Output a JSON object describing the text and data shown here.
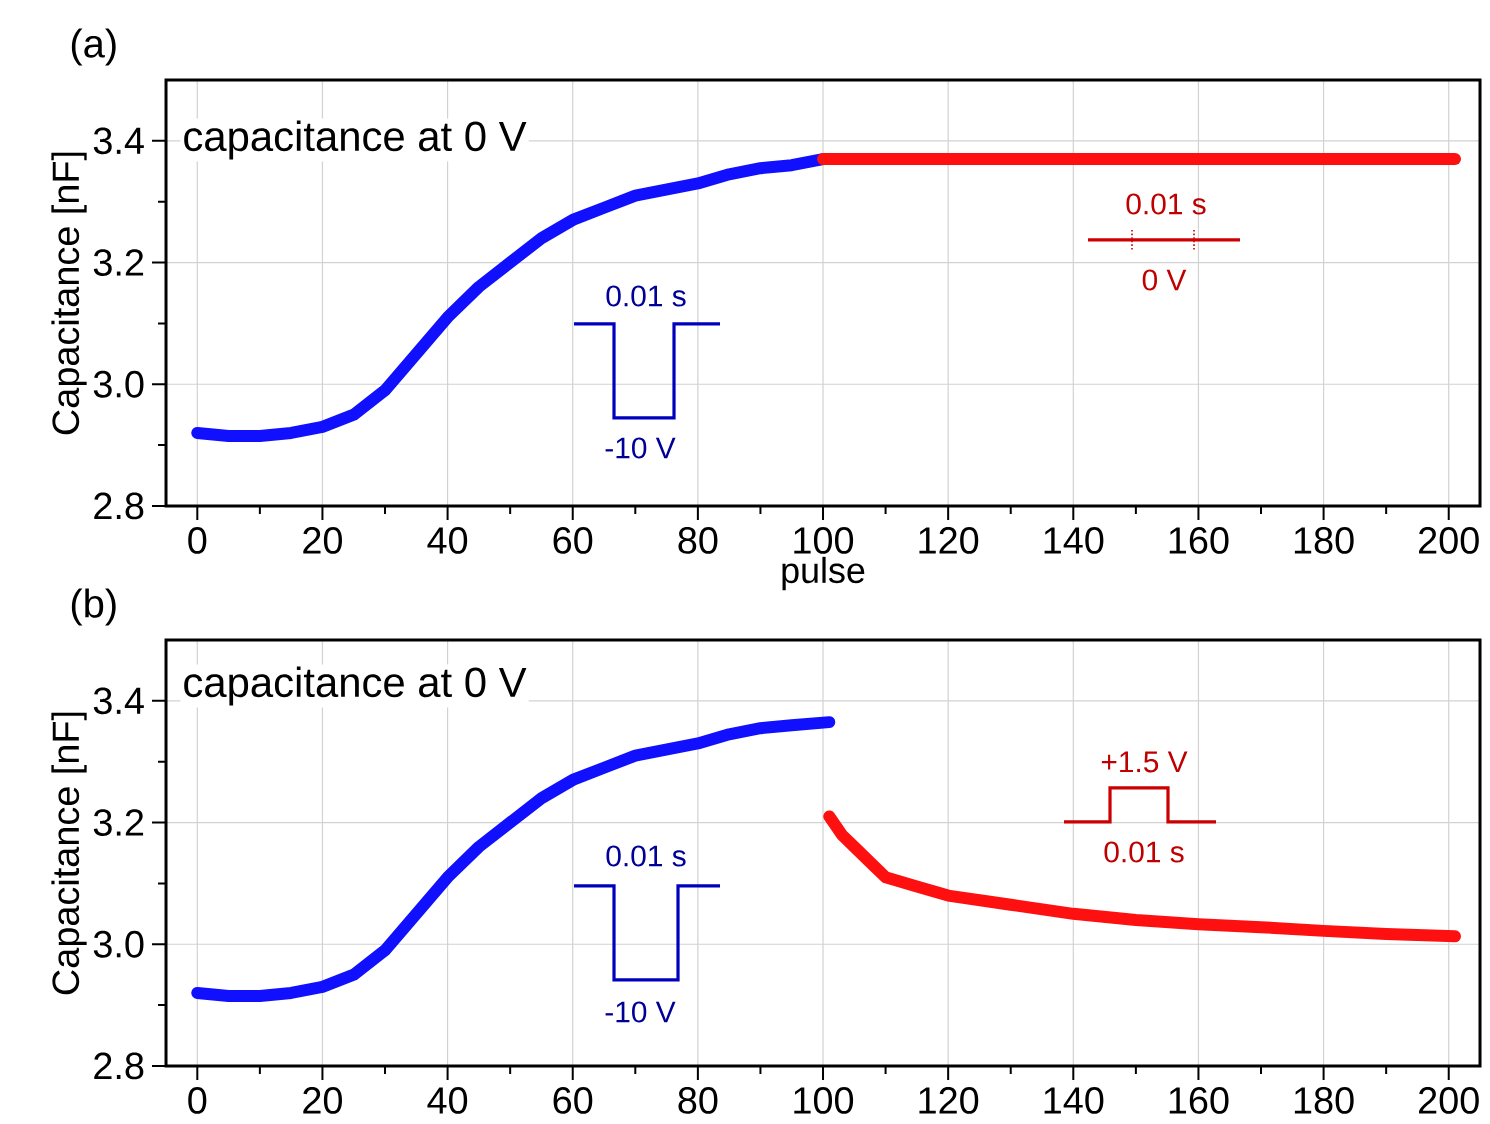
{
  "chart_data": [
    {
      "type": "line",
      "title": "(a)",
      "xlabel": "pulse",
      "ylabel": "Capacitance [nF]",
      "xlim": [
        -5,
        205
      ],
      "ylim": [
        2.8,
        3.5
      ],
      "xticks": [
        0,
        20,
        40,
        60,
        80,
        100,
        120,
        140,
        160,
        180,
        200
      ],
      "yticks": [
        2.8,
        {
          "value": 3.0,
          "label": "3.0"
        },
        3.2,
        3.4
      ],
      "grid": true,
      "annotations": [
        "capacitance at 0 V",
        "0.01 s",
        "-10 V",
        "0.01 s",
        "0 V"
      ],
      "series": [
        {
          "color": "#1010ff",
          "x": [
            0,
            5,
            10,
            15,
            20,
            25,
            30,
            35,
            40,
            45,
            50,
            55,
            60,
            65,
            70,
            75,
            80,
            85,
            90,
            95,
            100
          ],
          "values": [
            2.92,
            2.915,
            2.915,
            2.92,
            2.93,
            2.95,
            2.99,
            3.05,
            3.11,
            3.16,
            3.2,
            3.24,
            3.27,
            3.29,
            3.31,
            3.32,
            3.33,
            3.345,
            3.355,
            3.36,
            3.37
          ]
        },
        {
          "color": "#ff1010",
          "x": [
            100,
            120,
            140,
            160,
            180,
            201
          ],
          "values": [
            3.37,
            3.37,
            3.37,
            3.37,
            3.37,
            3.37
          ]
        }
      ]
    },
    {
      "type": "line",
      "title": "(b)",
      "ylabel": "Capacitance [nF]",
      "xlim": [
        -5,
        205
      ],
      "ylim": [
        2.8,
        3.5
      ],
      "xticks": [
        0,
        20,
        40,
        60,
        80,
        100,
        120,
        140,
        160,
        180,
        200
      ],
      "yticks": [
        2.8,
        {
          "value": 3.0,
          "label": "3.0"
        },
        3.2,
        3.4
      ],
      "grid": true,
      "annotations": [
        "capacitance at 0 V",
        "0.01 s",
        "-10 V",
        "+1.5 V",
        "0.01 s"
      ],
      "series": [
        {
          "color": "#1010ff",
          "x": [
            0,
            5,
            10,
            15,
            20,
            25,
            30,
            35,
            40,
            45,
            50,
            55,
            60,
            65,
            70,
            75,
            80,
            85,
            90,
            95,
            101
          ],
          "values": [
            2.92,
            2.915,
            2.915,
            2.92,
            2.93,
            2.95,
            2.99,
            3.05,
            3.11,
            3.16,
            3.2,
            3.24,
            3.27,
            3.29,
            3.31,
            3.32,
            3.33,
            3.345,
            3.355,
            3.36,
            3.365
          ]
        },
        {
          "color": "#ff1010",
          "x": [
            101,
            103,
            105,
            108,
            110,
            115,
            120,
            130,
            140,
            150,
            160,
            170,
            180,
            190,
            201
          ],
          "values": [
            3.21,
            3.18,
            3.16,
            3.13,
            3.11,
            3.095,
            3.08,
            3.065,
            3.05,
            3.04,
            3.033,
            3.028,
            3.022,
            3.017,
            3.013
          ]
        }
      ]
    }
  ]
}
